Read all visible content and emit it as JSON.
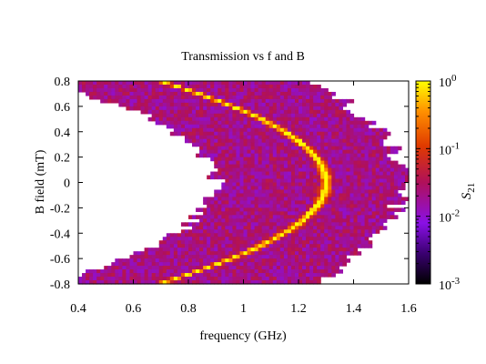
{
  "chart_data": {
    "type": "heatmap",
    "title": "Transmission vs f and B",
    "xlabel": "frequency (GHz)",
    "ylabel": "B field (mT)",
    "xlim": [
      0.4,
      1.6
    ],
    "ylim": [
      -0.8,
      0.8
    ],
    "x_ticks": [
      "0.4",
      "0.6",
      "0.8",
      "1",
      "1.2",
      "1.4",
      "1.6"
    ],
    "x_tick_values": [
      0.4,
      0.6,
      0.8,
      1.0,
      1.2,
      1.4,
      1.6
    ],
    "y_ticks": [
      "-0.8",
      "-0.6",
      "-0.4",
      "-0.2",
      "0",
      "0.2",
      "0.4",
      "0.6",
      "0.8"
    ],
    "y_tick_values": [
      -0.8,
      -0.6,
      -0.4,
      -0.2,
      0,
      0.2,
      0.4,
      0.6,
      0.8
    ],
    "colorbar": {
      "label": "S",
      "label_subscript": "21",
      "scale": "log",
      "range": [
        0.001,
        1
      ],
      "ticks": [
        {
          "value": 1,
          "base": "10",
          "exp": "0"
        },
        {
          "value": 0.1,
          "base": "10",
          "exp": "-1"
        },
        {
          "value": 0.01,
          "base": "10",
          "exp": "-2"
        },
        {
          "value": 0.001,
          "base": "10",
          "exp": "-3"
        }
      ],
      "colormap": "gnuplot pm3d (black-purple-red-orange-yellow)"
    },
    "resonance": {
      "f0_GHz": 1.3,
      "curvature": 0.95,
      "description": "peak transmission curve f(B) ≈ 1.3 − 0.95·B²"
    },
    "band_edges": {
      "inner_f0_GHz": 0.9,
      "inner_curvature": 0.95,
      "outer_f0_GHz": 1.58,
      "outer_curvature": 0.95
    },
    "grid": false,
    "legend": "none"
  }
}
